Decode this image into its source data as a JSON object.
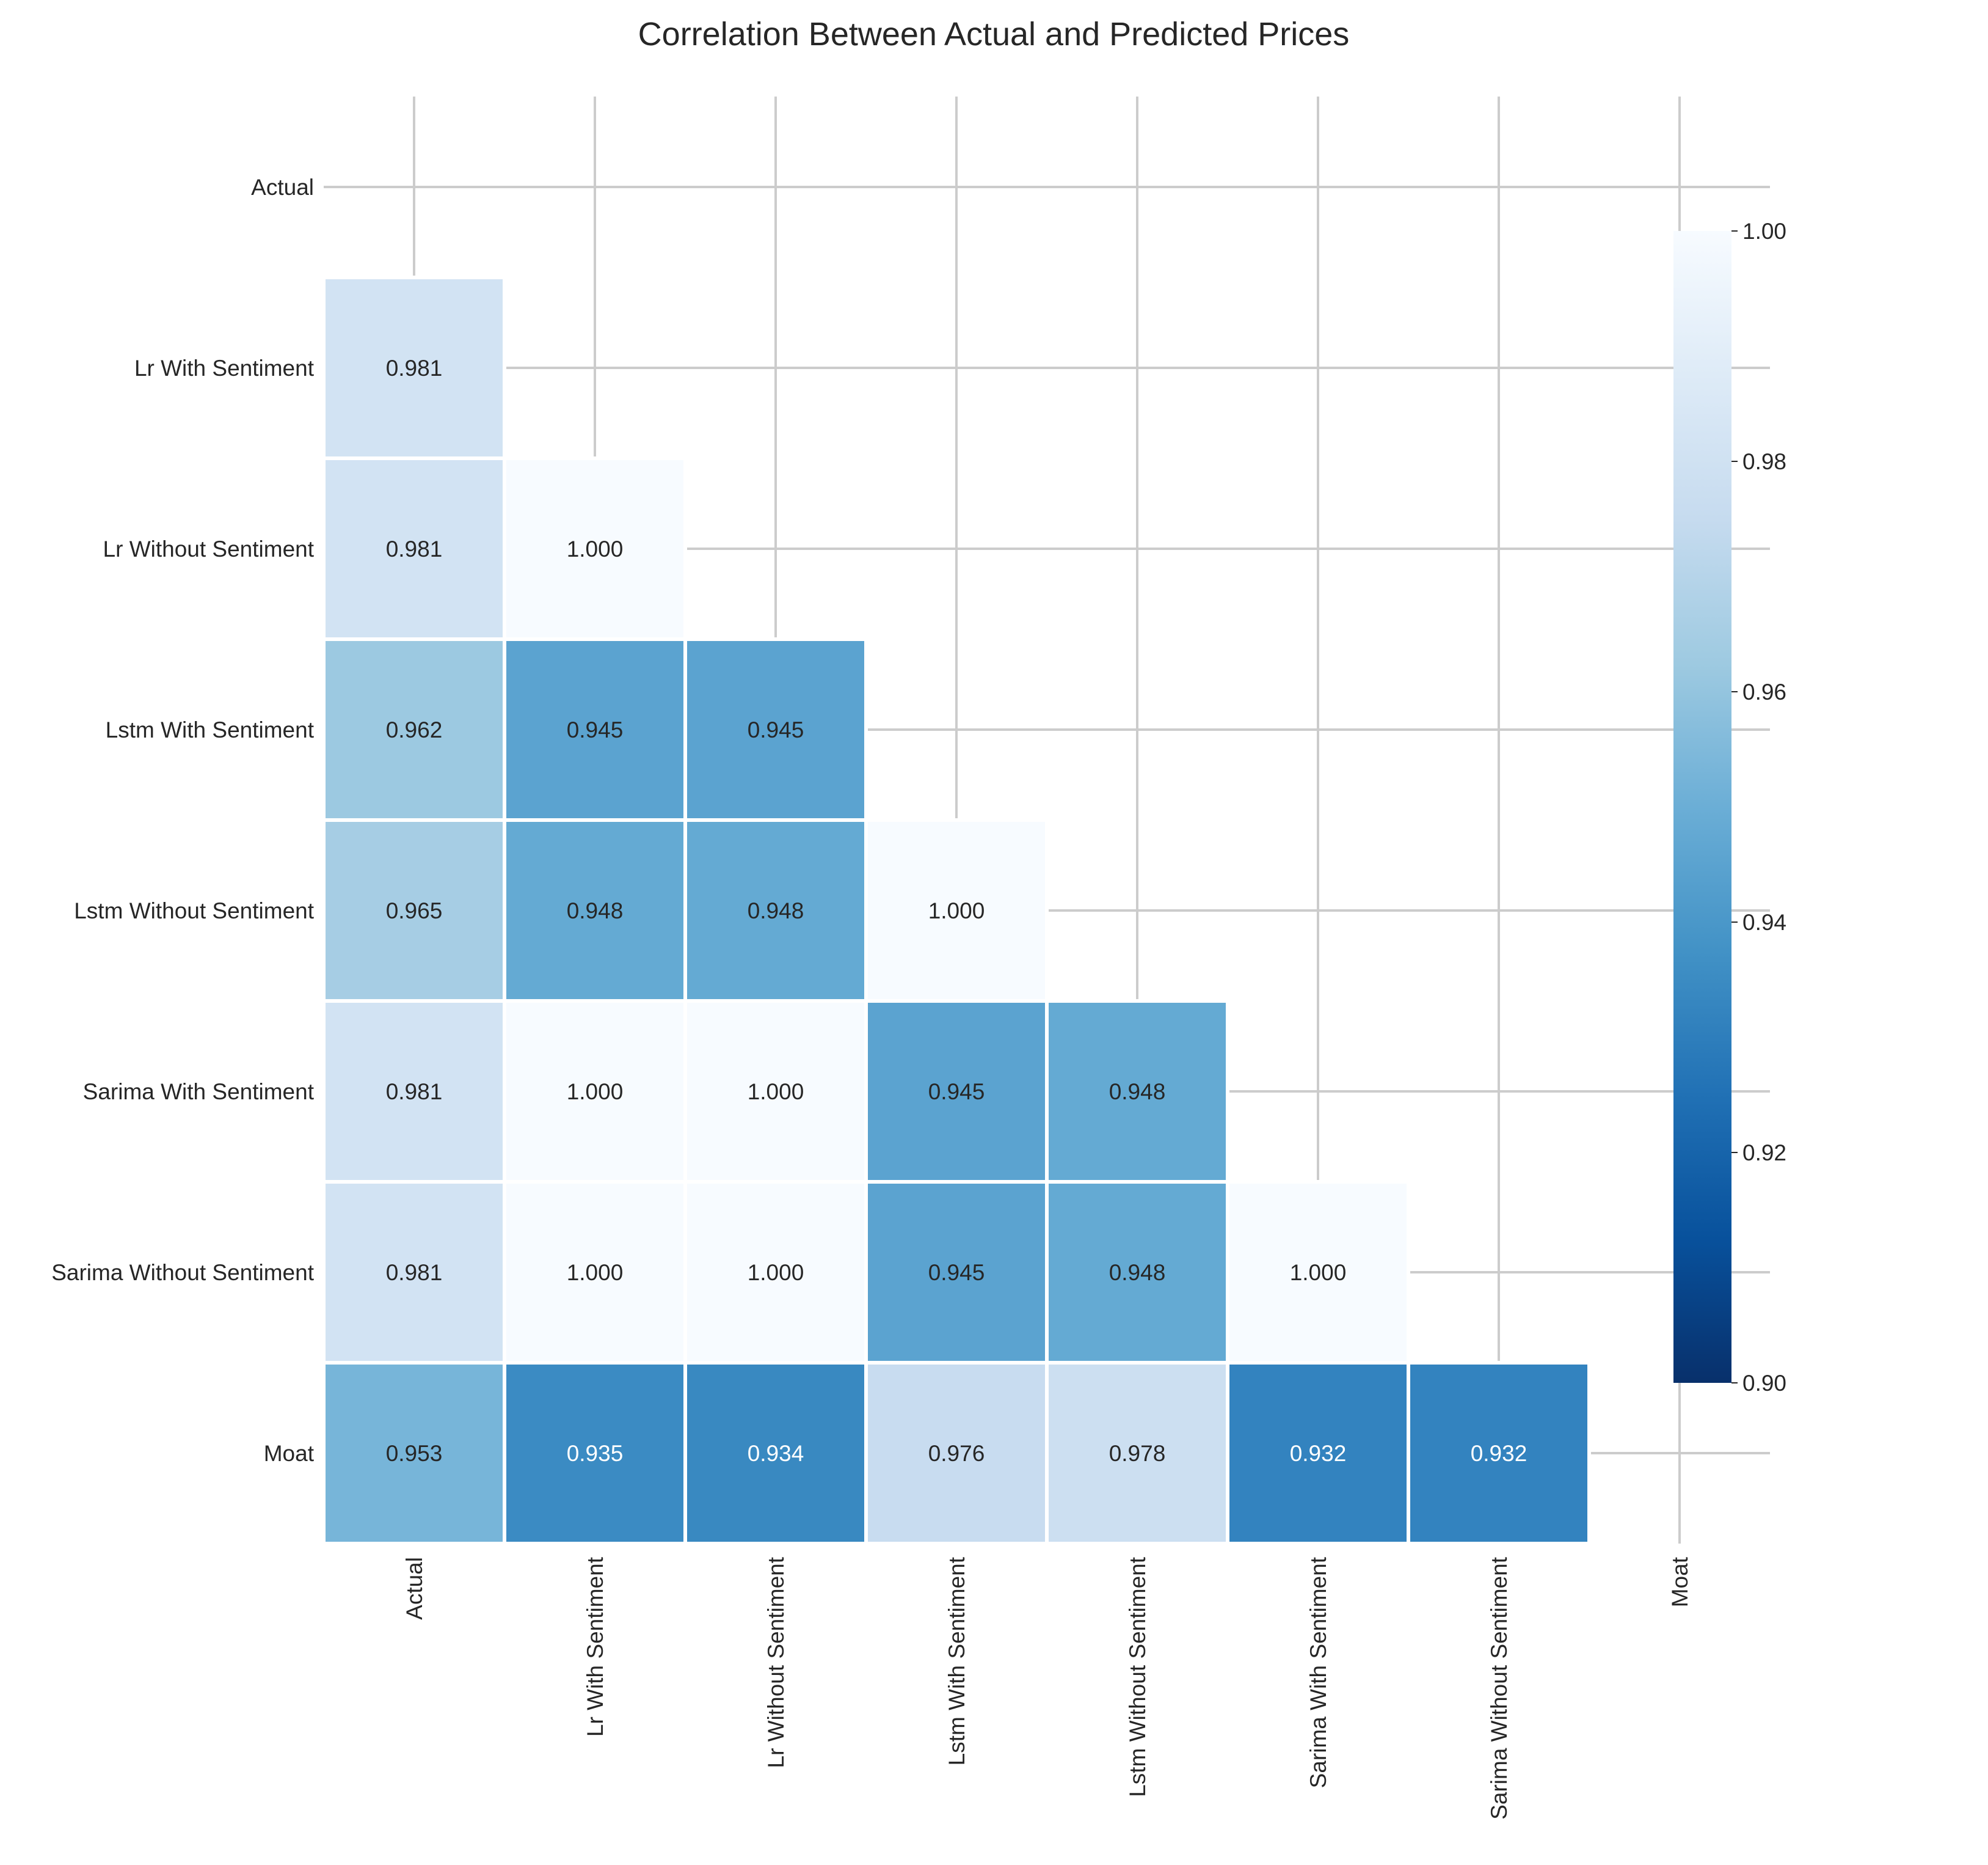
{
  "chart_data": {
    "type": "heatmap",
    "title": "Correlation Between Actual and Predicted Prices",
    "labels": [
      "Actual",
      "Lr With Sentiment",
      "Lr Without Sentiment",
      "Lstm With Sentiment",
      "Lstm Without Sentiment",
      "Sarima With Sentiment",
      "Sarima Without Sentiment",
      "Moat"
    ],
    "matrix": [
      [
        null,
        null,
        null,
        null,
        null,
        null,
        null,
        null
      ],
      [
        0.981,
        null,
        null,
        null,
        null,
        null,
        null,
        null
      ],
      [
        0.981,
        1.0,
        null,
        null,
        null,
        null,
        null,
        null
      ],
      [
        0.962,
        0.945,
        0.945,
        null,
        null,
        null,
        null,
        null
      ],
      [
        0.965,
        0.948,
        0.948,
        1.0,
        null,
        null,
        null,
        null
      ],
      [
        0.981,
        1.0,
        1.0,
        0.945,
        0.948,
        null,
        null,
        null
      ],
      [
        0.981,
        1.0,
        1.0,
        0.945,
        0.948,
        1.0,
        null,
        null
      ],
      [
        0.953,
        0.935,
        0.934,
        0.976,
        0.978,
        0.932,
        0.932,
        null
      ]
    ],
    "value_format": "0.000",
    "mask": "upper-triangle-including-diagonal",
    "colormap": "Blues_r",
    "vmin": 0.9,
    "vmax": 1.0,
    "colorbar_ticks": [
      "0.90",
      "0.92",
      "0.94",
      "0.96",
      "0.98",
      "1.00"
    ],
    "grid": true,
    "colors": {
      "background": "#ffffff",
      "grid": "#cccccc",
      "text_dark": "#262626",
      "text_light": "#ffffff"
    }
  }
}
